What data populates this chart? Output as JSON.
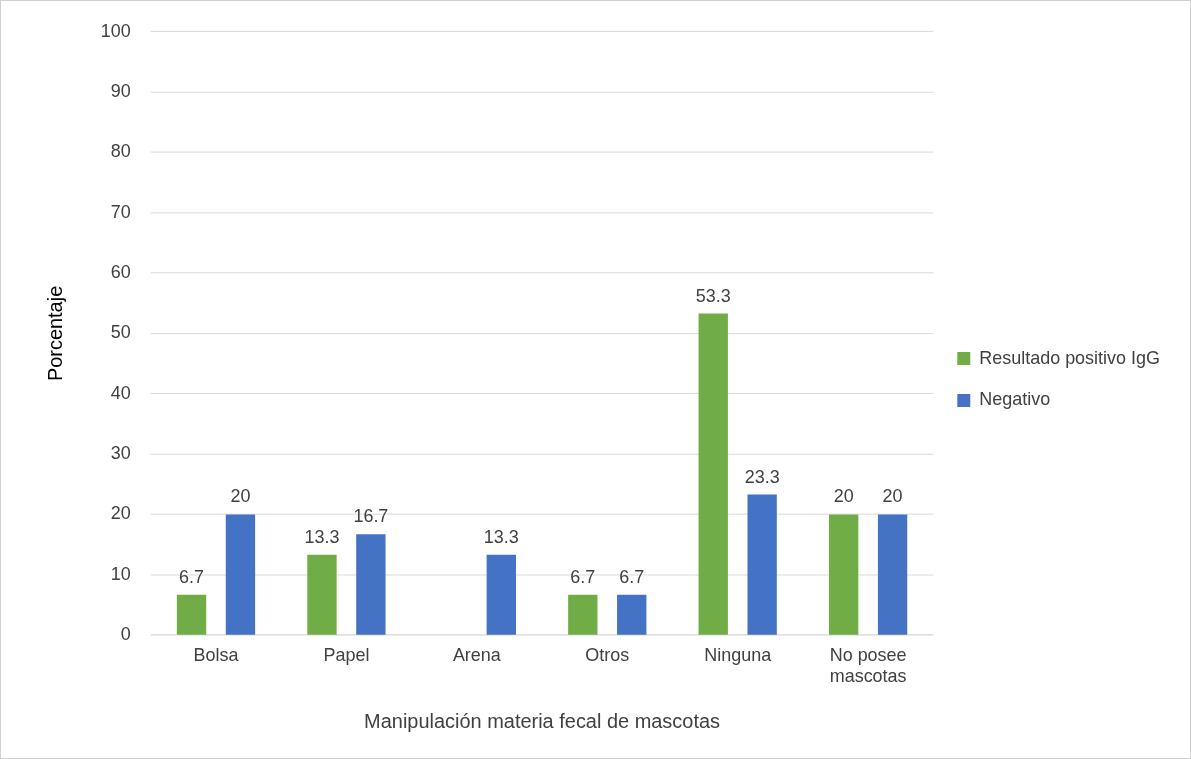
{
  "chart_data": {
    "type": "bar",
    "xlabel": "Manipulación materia fecal de mascotas",
    "ylabel": "Porcentaje",
    "categories": [
      "Bolsa",
      "Papel",
      "Arena",
      "Otros",
      "Ninguna",
      "No posee mascotas"
    ],
    "series": [
      {
        "name": "Resultado positivo IgG",
        "color": "#70ad47",
        "values": [
          6.7,
          13.3,
          0,
          6.7,
          53.3,
          20
        ],
        "value_labels": [
          "6.7",
          "13.3",
          null,
          "6.7",
          "53.3",
          "20"
        ]
      },
      {
        "name": "Negativo",
        "color": "#4472c4",
        "values": [
          20,
          16.7,
          13.3,
          6.7,
          23.3,
          20
        ],
        "value_labels": [
          "20",
          "16.7",
          "13.3",
          "6.7",
          "23.3",
          "20"
        ]
      }
    ],
    "ylim": [
      0,
      100
    ],
    "yticks": [
      0,
      10,
      20,
      30,
      40,
      50,
      60,
      70,
      80,
      90,
      100
    ],
    "grid": "y",
    "legend": "right"
  }
}
